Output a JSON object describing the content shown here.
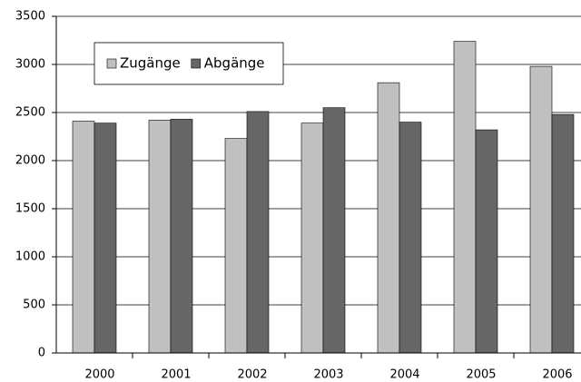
{
  "chart_data": {
    "type": "bar",
    "categories": [
      "2000",
      "2001",
      "2002",
      "2003",
      "2004",
      "2005",
      "2006"
    ],
    "series": [
      {
        "name": "Zugänge",
        "color": "#c0c0c0",
        "values": [
          2410,
          2420,
          2230,
          2390,
          2810,
          3240,
          2980
        ]
      },
      {
        "name": "Abgänge",
        "color": "#666666",
        "values": [
          2390,
          2430,
          2510,
          2550,
          2400,
          2320,
          2480
        ]
      }
    ],
    "ylim": [
      0,
      3500
    ],
    "yticks": [
      0,
      500,
      1000,
      1500,
      2000,
      2500,
      3000,
      3500
    ],
    "grid": true,
    "legend": "upper-left"
  }
}
